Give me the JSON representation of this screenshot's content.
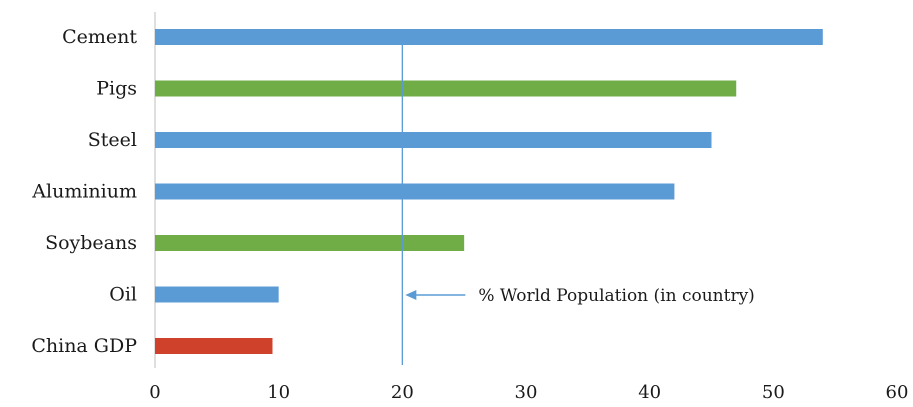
{
  "chart_data": {
    "type": "bar",
    "orientation": "horizontal",
    "categories": [
      "Cement",
      "Pigs",
      "Steel",
      "Aluminium",
      "Soybeans",
      "Oil",
      "China GDP"
    ],
    "values": [
      54,
      47,
      45,
      42,
      25,
      10,
      9.5
    ],
    "bar_colors": [
      "#5b9bd5",
      "#70ad47",
      "#5b9bd5",
      "#5b9bd5",
      "#70ad47",
      "#5b9bd5",
      "#d0412b"
    ],
    "xlim": [
      0,
      60
    ],
    "xticks": [
      0,
      10,
      20,
      30,
      40,
      50,
      60
    ],
    "grid": false,
    "reference_line": {
      "value": 20,
      "label": "% World Population (in country)",
      "color": "#5b9bd5"
    }
  }
}
